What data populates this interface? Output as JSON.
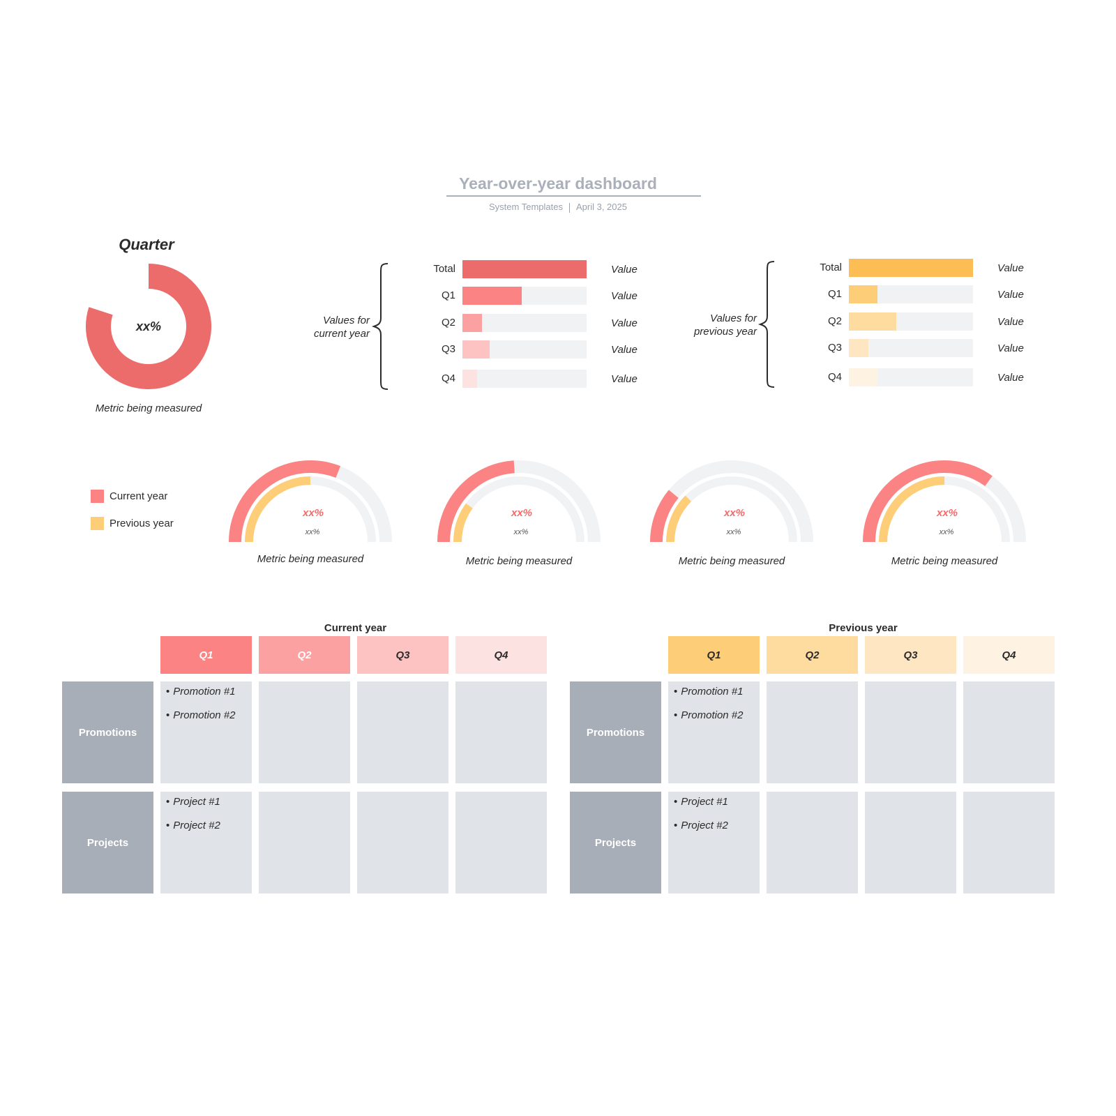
{
  "header": {
    "title": "Year-over-year dashboard",
    "author": "System Templates",
    "date": "April 3, 2025"
  },
  "quarter_donut": {
    "title": "Quarter",
    "center_text": "xx%",
    "caption": "Metric being measured",
    "fill_fraction": 0.8,
    "color": "#ec6b6b"
  },
  "current_bars": {
    "group_label_line1": "Values for",
    "group_label_line2": "current year",
    "rows": [
      {
        "label": "Total",
        "value": "Value",
        "fill": 1.0,
        "color": "#ec6b6b"
      },
      {
        "label": "Q1",
        "value": "Value",
        "fill": 0.48,
        "color": "#fb8383"
      },
      {
        "label": "Q2",
        "value": "Value",
        "fill": 0.16,
        "color": "#fca1a1"
      },
      {
        "label": "Q3",
        "value": "Value",
        "fill": 0.22,
        "color": "#fdc2c2"
      },
      {
        "label": "Q4",
        "value": "Value",
        "fill": 0.12,
        "color": "#fde2e2"
      }
    ]
  },
  "previous_bars": {
    "group_label_line1": "Values for",
    "group_label_line2": "previous year",
    "rows": [
      {
        "label": "Total",
        "value": "Value",
        "fill": 1.0,
        "color": "#fdbd55"
      },
      {
        "label": "Q1",
        "value": "Value",
        "fill": 0.23,
        "color": "#fdcd78"
      },
      {
        "label": "Q2",
        "value": "Value",
        "fill": 0.38,
        "color": "#fedb9f"
      },
      {
        "label": "Q3",
        "value": "Value",
        "fill": 0.16,
        "color": "#fee6c2"
      },
      {
        "label": "Q4",
        "value": "Value",
        "fill": 0.23,
        "color": "#fef3e2"
      }
    ]
  },
  "legend": [
    {
      "label": "Current year",
      "color": "#fb8383"
    },
    {
      "label": "Previous year",
      "color": "#fdcd78"
    }
  ],
  "gauges": [
    {
      "main": "xx%",
      "sub": "xx%",
      "caption": "Metric being measured",
      "current": 0.62,
      "previous": 0.5
    },
    {
      "main": "xx%",
      "sub": "xx%",
      "caption": "Metric being measured",
      "current": 0.48,
      "previous": 0.2
    },
    {
      "main": "xx%",
      "sub": "xx%",
      "caption": "Metric being measured",
      "current": 0.22,
      "previous": 0.25
    },
    {
      "main": "xx%",
      "sub": "xx%",
      "caption": "Metric being measured",
      "current": 0.7,
      "previous": 0.5
    }
  ],
  "gauge_colors": {
    "current": "#fb8383",
    "previous": "#fdcd78",
    "track": "#f1f2f4",
    "main_text": "#f26b6b"
  },
  "tables": [
    {
      "title": "Current year",
      "quarters": [
        {
          "label": "Q1",
          "bg": "#fb8383",
          "fg": "#ffffff"
        },
        {
          "label": "Q2",
          "bg": "#fca1a1",
          "fg": "#ffffff"
        },
        {
          "label": "Q3",
          "bg": "#fdc2c2",
          "fg": "#2b2b2b"
        },
        {
          "label": "Q4",
          "bg": "#fde2e2",
          "fg": "#2b2b2b"
        }
      ],
      "rows": [
        {
          "label": "Promotions",
          "items": [
            "Promotion #1",
            "Promotion #2"
          ]
        },
        {
          "label": "Projects",
          "items": [
            "Project #1",
            "Project #2"
          ]
        }
      ]
    },
    {
      "title": "Previous year",
      "quarters": [
        {
          "label": "Q1",
          "bg": "#fdcd78",
          "fg": "#2b2b2b"
        },
        {
          "label": "Q2",
          "bg": "#fedb9f",
          "fg": "#2b2b2b"
        },
        {
          "label": "Q3",
          "bg": "#fee6c2",
          "fg": "#2b2b2b"
        },
        {
          "label": "Q4",
          "bg": "#fef3e2",
          "fg": "#2b2b2b"
        }
      ],
      "rows": [
        {
          "label": "Promotions",
          "items": [
            "Promotion #1",
            "Promotion #2"
          ]
        },
        {
          "label": "Projects",
          "items": [
            "Project #1",
            "Project #2"
          ]
        }
      ]
    }
  ]
}
